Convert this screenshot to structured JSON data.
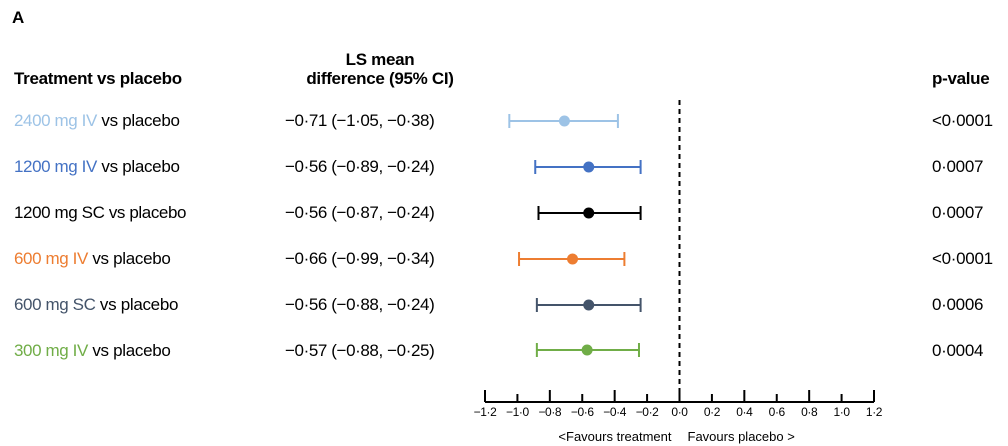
{
  "panel_label": "A",
  "headers": {
    "treatment": "Treatment vs placebo",
    "ls_line1": "LS mean",
    "ls_line2": "difference (95% CI)",
    "pvalue": "p-value"
  },
  "rows": [
    {
      "dose": "2400 mg IV",
      "suffix": " vs placebo",
      "ci": "−0·71 (−1·05, −0·38)",
      "p": "<0·0001"
    },
    {
      "dose": "1200 mg IV",
      "suffix": " vs placebo",
      "ci": "−0·56 (−0·89, −0·24)",
      "p": "0·0007"
    },
    {
      "dose": "1200 mg SC vs placebo",
      "suffix": "",
      "ci": "−0·56 (−0·87, −0·24)",
      "p": "0·0007"
    },
    {
      "dose": "600 mg IV",
      "suffix": " vs placebo",
      "ci": "−0·66 (−0·99, −0·34)",
      "p": "<0·0001"
    },
    {
      "dose": "600 mg SC",
      "suffix": " vs placebo",
      "ci": "−0·56 (−0·88, −0·24)",
      "p": "0·0006"
    },
    {
      "dose": "300 mg IV",
      "suffix": " vs placebo",
      "ci": "−0·57 (−0·88, −0·25)",
      "p": "0·0004"
    }
  ],
  "chart_data": {
    "type": "forest",
    "categories": [
      "2400 mg IV vs placebo",
      "1200 mg IV vs placebo",
      "1200 mg SC vs placebo",
      "600 mg IV vs placebo",
      "600 mg SC vs placebo",
      "300 mg IV vs placebo"
    ],
    "estimate": [
      -0.71,
      -0.56,
      -0.56,
      -0.66,
      -0.56,
      -0.57
    ],
    "lower": [
      -1.05,
      -0.89,
      -0.87,
      -0.99,
      -0.88,
      -0.88
    ],
    "upper": [
      -0.38,
      -0.24,
      -0.24,
      -0.34,
      -0.24,
      -0.25
    ],
    "colors": [
      "#9dc3e6",
      "#4472c4",
      "#000000",
      "#ed7d31",
      "#44546a",
      "#70ad47"
    ],
    "xlim": [
      -1.2,
      1.2
    ],
    "xticks": [
      -1.2,
      -1.0,
      -0.8,
      -0.6,
      -0.4,
      -0.2,
      0.0,
      0.2,
      0.4,
      0.6,
      0.8,
      1.0,
      1.2
    ],
    "xtick_labels": [
      "−1·2",
      "−1·0",
      "−0·8",
      "−0·6",
      "−0·4",
      "−0·2",
      "0·0",
      "0·2",
      "0·4",
      "0·6",
      "0·8",
      "1·0",
      "1·2"
    ],
    "reference_line": 0,
    "xlabel_left": "<Favours treatment",
    "xlabel_right": "Favours placebo >"
  }
}
